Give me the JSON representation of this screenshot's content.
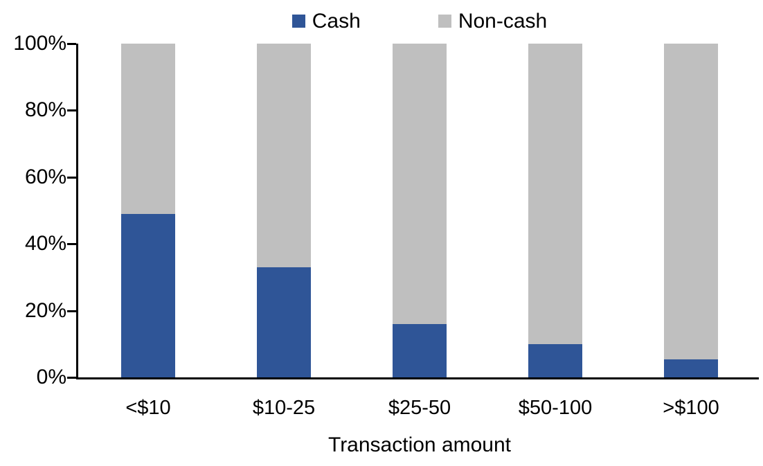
{
  "chart_data": {
    "type": "bar",
    "subtype": "stacked-100-percent",
    "title": "",
    "xlabel": "Transaction amount",
    "ylabel": "",
    "categories": [
      "<$10",
      "$10-25",
      "$25-50",
      "$50-100",
      ">$100"
    ],
    "series": [
      {
        "name": "Cash",
        "color": "#2F5597",
        "values": [
          49,
          33,
          16,
          10,
          5.5
        ]
      },
      {
        "name": "Non-cash",
        "color": "#BFBFBF",
        "values": [
          51,
          67,
          84,
          90,
          94.5
        ]
      }
    ],
    "ylim": [
      0,
      100
    ],
    "yticks": [
      "0%",
      "20%",
      "40%",
      "60%",
      "80%",
      "100%"
    ],
    "grid": false,
    "legend_position": "top-center"
  },
  "colors": {
    "cash": "#2F5597",
    "noncash": "#BFBFBF",
    "axis": "#000000",
    "background": "#FFFFFF"
  }
}
